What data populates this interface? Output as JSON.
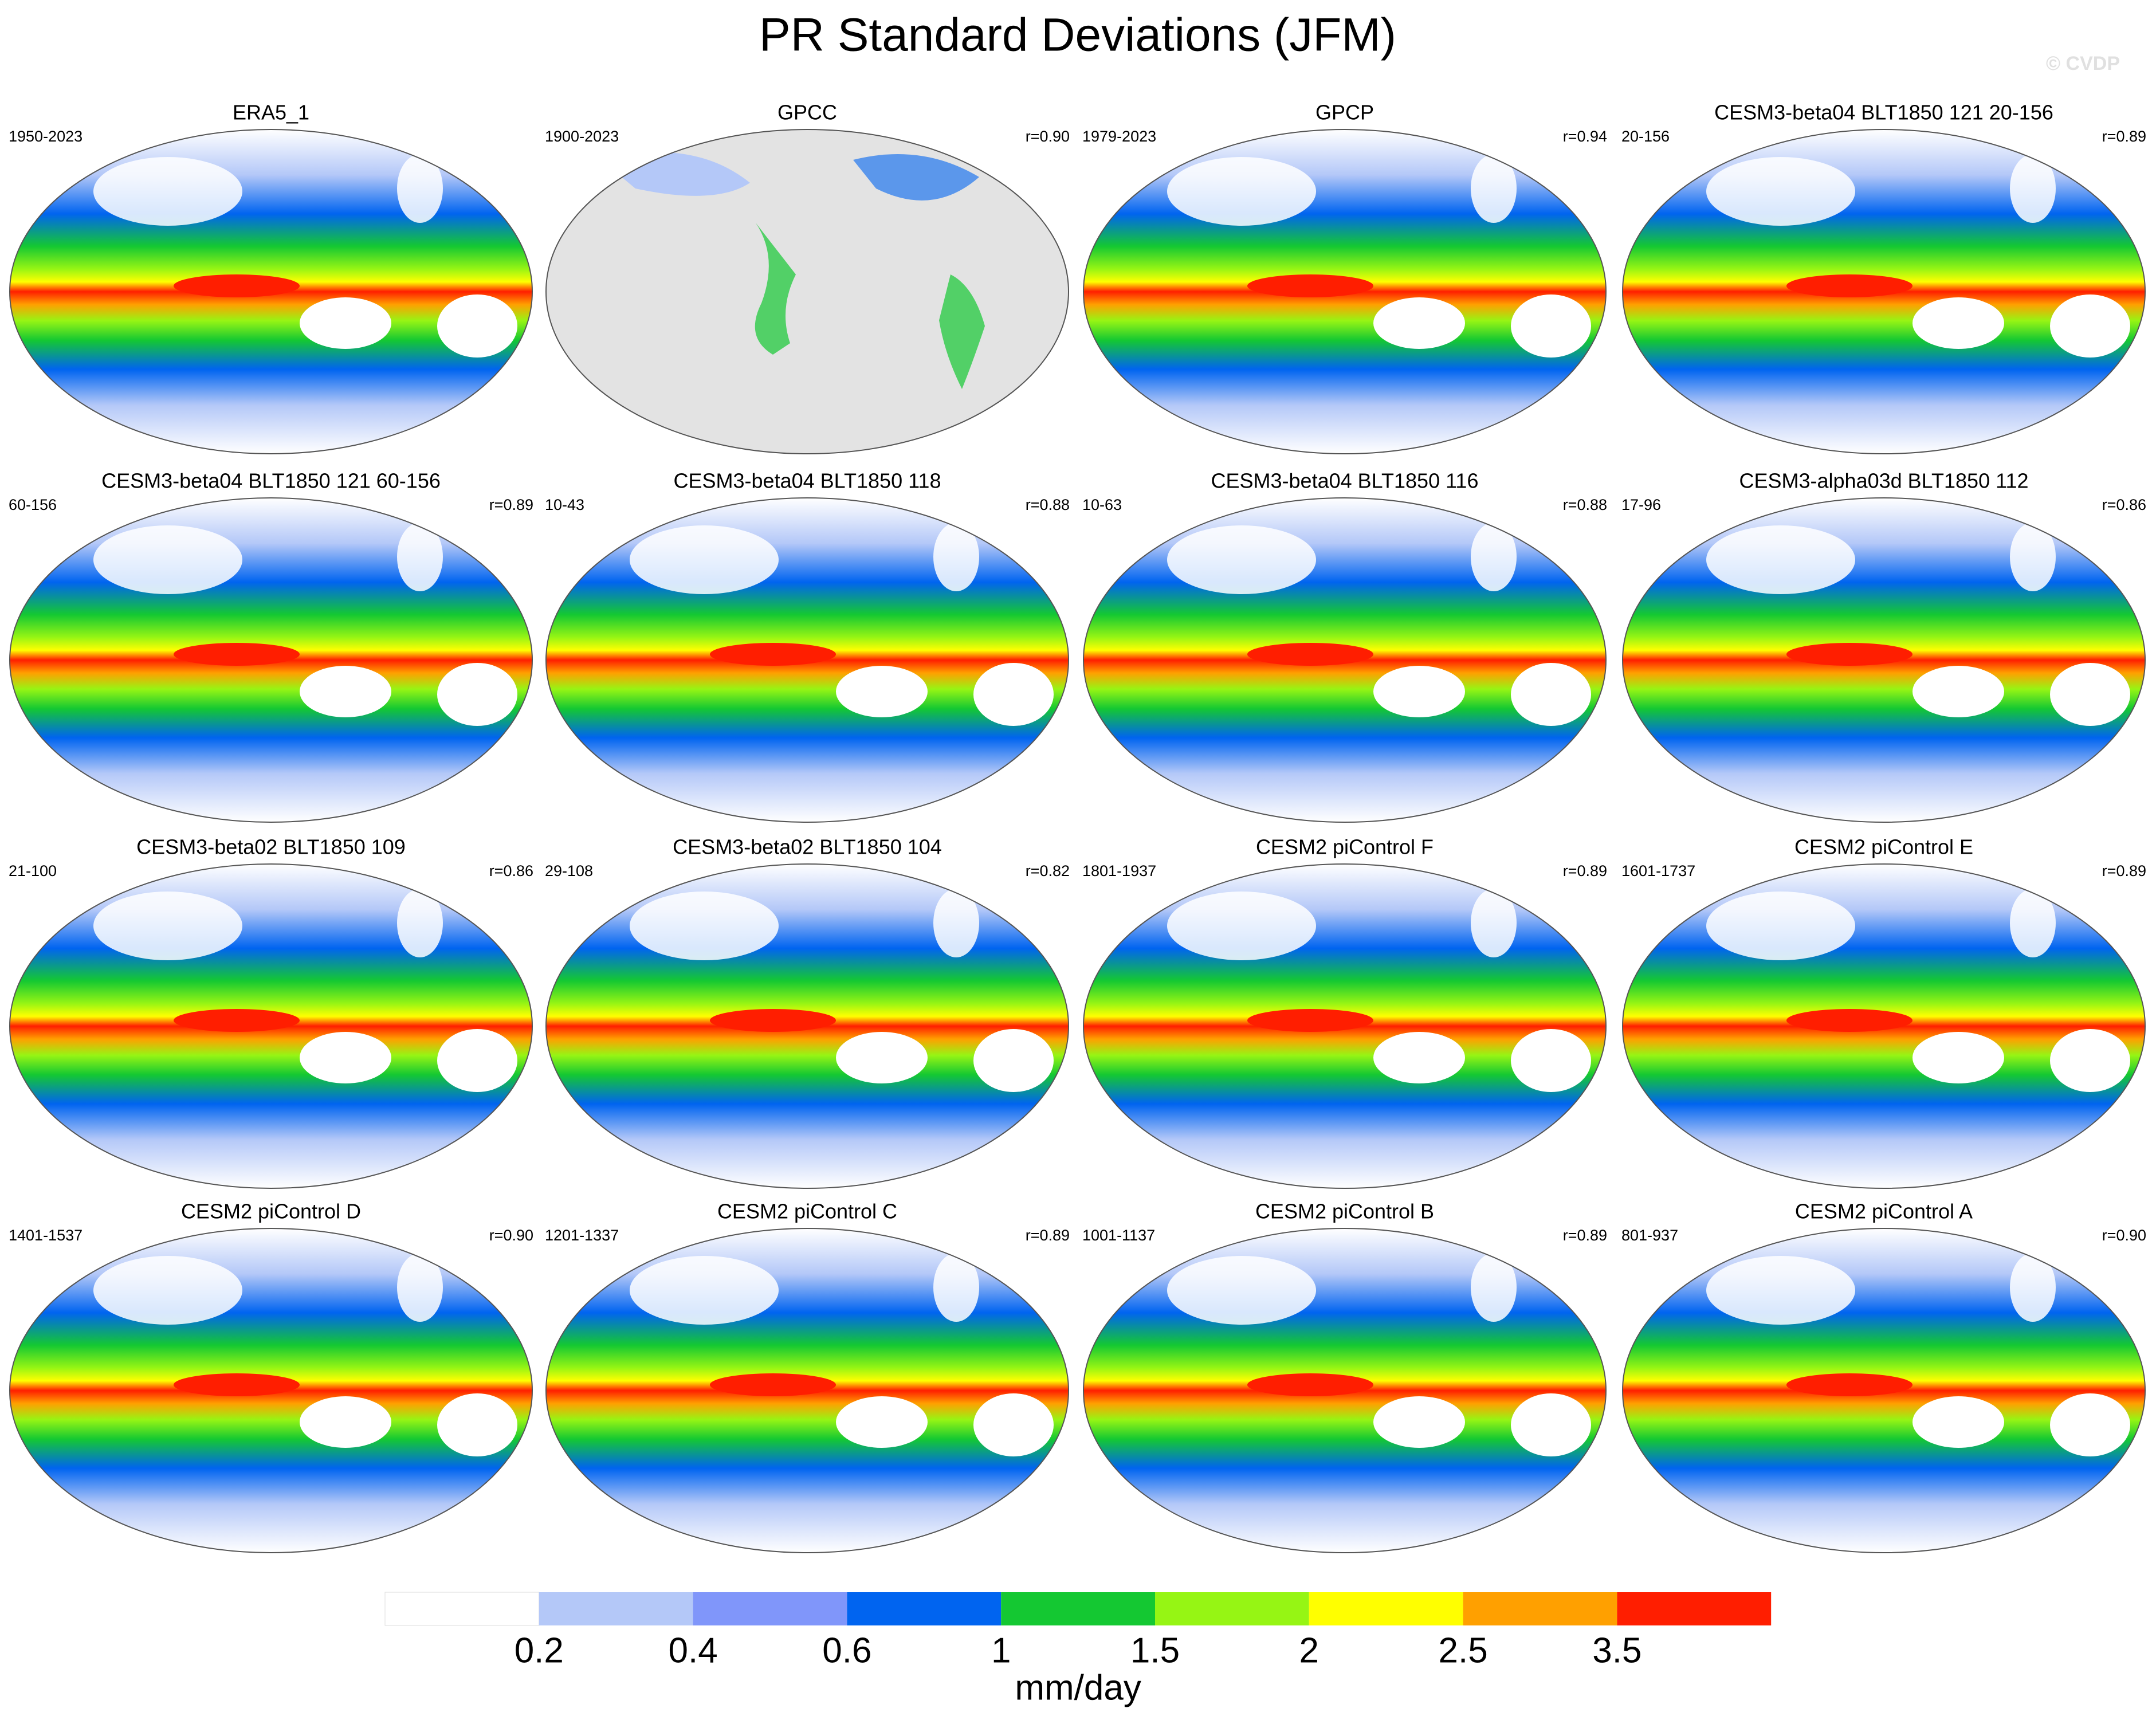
{
  "title": "PR Standard Deviations (JFM)",
  "watermark": "© CVDP",
  "panels": [
    {
      "title": "ERA5_1",
      "period": "1950-2023"
    },
    {
      "title": "GPCC",
      "period": "1900-2023",
      "r": "r=0.90"
    },
    {
      "title": "GPCP",
      "period": "1979-2023",
      "r": "r=0.94"
    },
    {
      "title": "CESM3-beta04 BLT1850 121 20-156",
      "period": "20-156",
      "r": "r=0.89"
    },
    {
      "title": "CESM3-beta04 BLT1850 121 60-156",
      "period": "60-156",
      "r": "r=0.89"
    },
    {
      "title": "CESM3-beta04 BLT1850 118",
      "period": "10-43",
      "r": "r=0.88"
    },
    {
      "title": "CESM3-beta04 BLT1850 116",
      "period": "10-63",
      "r": "r=0.88"
    },
    {
      "title": "CESM3-alpha03d BLT1850 112",
      "period": "17-96",
      "r": "r=0.86"
    },
    {
      "title": "CESM3-beta02 BLT1850 109",
      "period": "21-100",
      "r": "r=0.86"
    },
    {
      "title": "CESM3-beta02 BLT1850 104",
      "period": "29-108",
      "r": "r=0.82"
    },
    {
      "title": "CESM2 piControl F",
      "period": "1801-1937",
      "r": "r=0.89"
    },
    {
      "title": "CESM2 piControl E",
      "period": "1601-1737",
      "r": "r=0.89"
    },
    {
      "title": "CESM2 piControl D",
      "period": "1401-1537",
      "r": "r=0.90"
    },
    {
      "title": "CESM2 piControl C",
      "period": "1201-1337",
      "r": "r=0.89"
    },
    {
      "title": "CESM2 piControl B",
      "period": "1001-1137",
      "r": "r=0.89"
    },
    {
      "title": "CESM2 piControl A",
      "period": "801-937",
      "r": "r=0.90"
    }
  ],
  "colorbar": {
    "colors": [
      "#ffffff",
      "#b4c8f8",
      "#8096fa",
      "#0064f0",
      "#14c832",
      "#96f514",
      "#ffff00",
      "#ffa000",
      "#ff1e00"
    ],
    "labels": [
      0.2,
      0.4,
      0.6,
      1,
      1.5,
      2,
      2.5,
      3.5
    ],
    "unit": "mm/day"
  }
}
